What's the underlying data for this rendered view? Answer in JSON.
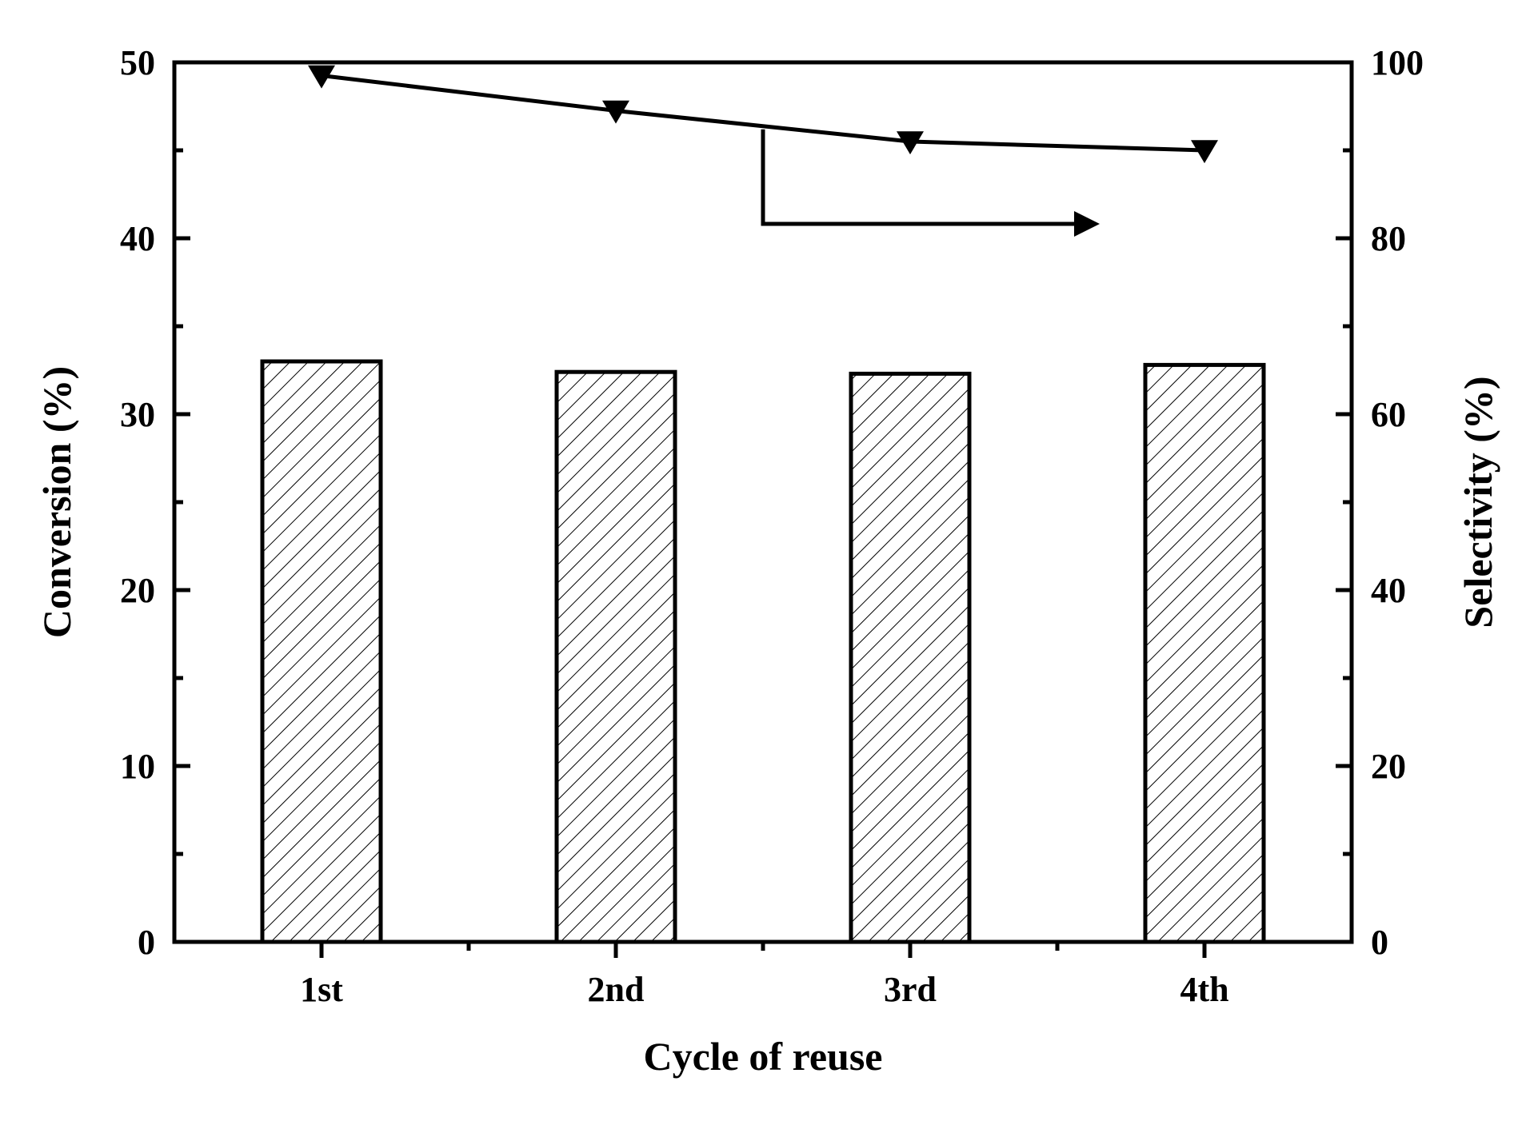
{
  "chart_data": {
    "type": "bar",
    "xlabel": "Cycle of reuse",
    "ylabel": "Conversion (%)",
    "y2label": "Selectivity (%)",
    "categories": [
      "1st",
      "2nd",
      "3rd",
      "4th"
    ],
    "series": [
      {
        "axis": "left",
        "type": "bar",
        "values": [
          33.0,
          32.4,
          32.3,
          32.8
        ],
        "style": "hatched"
      },
      {
        "axis": "right",
        "type": "line",
        "marker": "down-triangle",
        "values": [
          98.5,
          94.5,
          91.0,
          90.0
        ]
      }
    ],
    "ylim": [
      0,
      50
    ],
    "yticks": [
      0,
      10,
      20,
      30,
      40,
      50
    ],
    "y2lim": [
      0,
      100
    ],
    "y2ticks": [
      0,
      20,
      40,
      60,
      80,
      100
    ],
    "annotation": "arrow pointing to right axis",
    "grid": false,
    "colors": {
      "axis": "#000000",
      "bar_fill": "#ffffff",
      "hatch": "#000000",
      "line": "#000000"
    }
  }
}
